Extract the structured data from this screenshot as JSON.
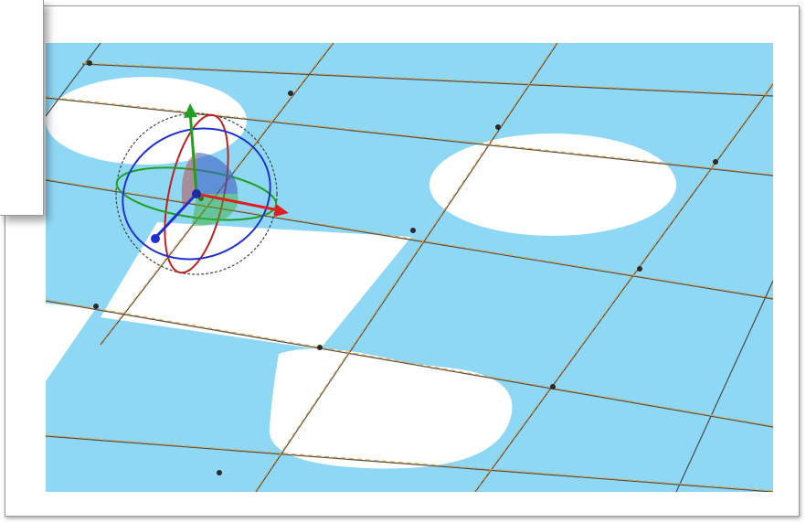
{
  "scene": {
    "colors": {
      "tile_blue": "#8fd8f5",
      "tile_white": "#ffffff",
      "grid_line": "#4a4a4a",
      "grid_dash": "#e0a040",
      "vertex": "#2a2a2a",
      "gizmo_x_axis": "#e02020",
      "gizmo_y_axis": "#20a020",
      "gizmo_z_axis": "#2030d0",
      "gizmo_ring_outer": "#444444"
    },
    "icons": {
      "gizmo": "transform-gizmo-icon"
    }
  }
}
